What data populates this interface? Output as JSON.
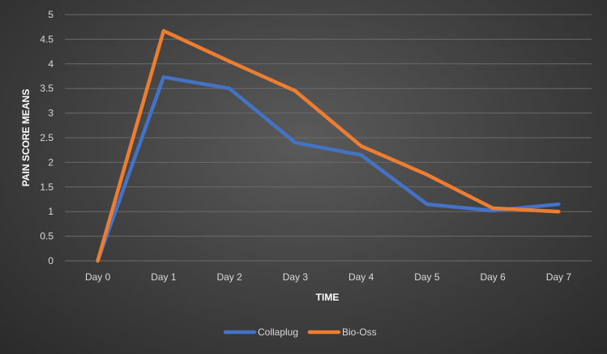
{
  "chart_data": {
    "type": "line",
    "title": "",
    "xlabel": "TIME",
    "ylabel": "PAIN SCORE MEANS",
    "categories": [
      "Day 0",
      "Day 1",
      "Day 2",
      "Day 3",
      "Day 4",
      "Day 5",
      "Day 6",
      "Day 7"
    ],
    "ylim": [
      0,
      5
    ],
    "yticks": [
      "0",
      "0.5",
      "1",
      "1.5",
      "2",
      "2.5",
      "3",
      "3.5",
      "4",
      "4.5",
      "5"
    ],
    "grid": true,
    "legend_position": "bottom",
    "series": [
      {
        "name": "Collaplug",
        "color": "#4472c4",
        "values": [
          0,
          3.73,
          3.5,
          2.4,
          2.15,
          1.15,
          1.02,
          1.15
        ]
      },
      {
        "name": "Bio-Oss",
        "color": "#ed7d31",
        "values": [
          0,
          4.67,
          4.05,
          3.45,
          2.33,
          1.75,
          1.07,
          1.0
        ]
      }
    ]
  }
}
